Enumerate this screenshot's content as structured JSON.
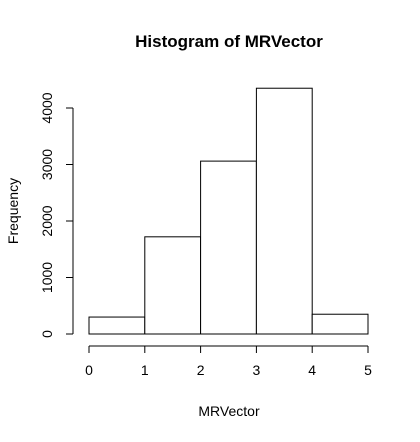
{
  "chart_data": {
    "type": "bar",
    "title": "Histogram of MRVector",
    "xlabel": "MRVector",
    "ylabel": "Frequency",
    "bins": [
      {
        "from": 0,
        "to": 1,
        "value": 300
      },
      {
        "from": 1,
        "to": 2,
        "value": 1720
      },
      {
        "from": 2,
        "to": 3,
        "value": 3060
      },
      {
        "from": 3,
        "to": 4,
        "value": 4350
      },
      {
        "from": 4,
        "to": 5,
        "value": 350
      }
    ],
    "xlim": [
      0,
      5
    ],
    "ylim": [
      0,
      4350
    ],
    "x_ticks": [
      "0",
      "1",
      "2",
      "3",
      "4",
      "5"
    ],
    "y_ticks": [
      "0",
      "1000",
      "2000",
      "3000",
      "4000"
    ],
    "grid": false,
    "colors": {
      "bar_fill": "#ffffff",
      "bar_stroke": "#000000"
    }
  }
}
